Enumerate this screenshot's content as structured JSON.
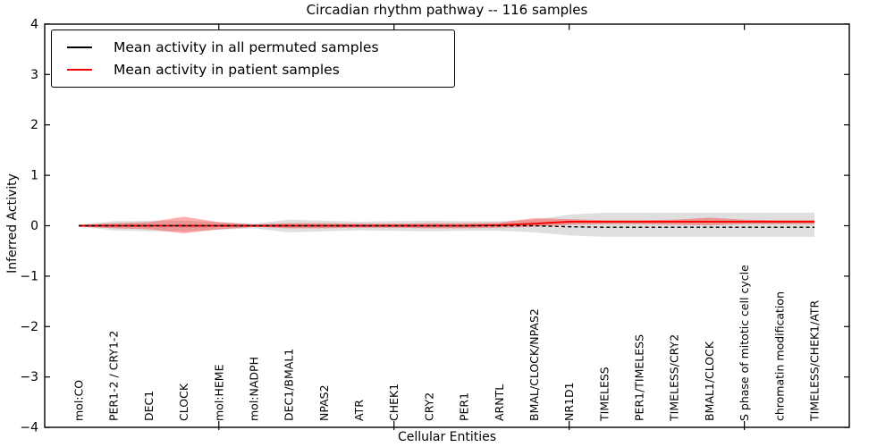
{
  "chart_data": {
    "type": "line",
    "title": "Circadian rhythm pathway -- 116 samples",
    "xlabel": "Cellular Entities",
    "ylabel": "Inferred Activity",
    "ylim": [
      -4,
      4
    ],
    "grid": false,
    "legend_position": "upper left",
    "ytick_values": [
      4,
      3,
      2,
      1,
      0,
      -1,
      -2,
      -3,
      -4
    ],
    "ytick_labels": [
      "4",
      "3",
      "2",
      "1",
      "0",
      "−1",
      "−2",
      "−3",
      "−4"
    ],
    "axis_tick_category_indices": [
      4,
      9,
      14,
      19
    ],
    "categories": [
      "mol:CO",
      "PER1-2 / CRY1-2",
      "DEC1",
      "CLOCK",
      "mol:HEME",
      "mol:NADPH",
      "DEC1/BMAL1",
      "NPAS2",
      "ATR",
      "CHEK1",
      "CRY2",
      "PER1",
      "ARNTL",
      "BMAL/CLOCK/NPAS2",
      "NR1D1",
      "TIMELESS",
      "PER1/TIMELESS",
      "TIMELESS/CRY2",
      "BMAL1/CLOCK",
      "S phase of mitotic cell cycle",
      "chromatin modification",
      "TIMELESS/CHEK1/ATR"
    ],
    "series": [
      {
        "name": "Mean activity in all permuted samples",
        "color": "#000000",
        "style": "dashed",
        "values": [
          0,
          0,
          0,
          0,
          0,
          0,
          0,
          0,
          0,
          0,
          0,
          0,
          0,
          0,
          -0.02,
          -0.03,
          -0.03,
          -0.03,
          -0.03,
          -0.03,
          -0.03,
          -0.03
        ]
      },
      {
        "name": "Mean activity in patient samples",
        "color": "#ff0000",
        "style": "solid",
        "values": [
          0,
          0,
          0,
          0,
          0,
          0,
          0,
          0,
          0,
          0,
          0,
          0,
          0.01,
          0.04,
          0.08,
          0.08,
          0.08,
          0.08,
          0.08,
          0.08,
          0.08,
          0.08
        ]
      }
    ],
    "bands": [
      {
        "name": "permuted-samples-range",
        "color": "#808080",
        "opacity": 0.25,
        "upper": [
          0.02,
          0.09,
          0.1,
          0.1,
          0.07,
          0.04,
          0.12,
          0.1,
          0.08,
          0.09,
          0.1,
          0.09,
          0.09,
          0.12,
          0.22,
          0.26,
          0.26,
          0.26,
          0.26,
          0.26,
          0.26,
          0.26
        ],
        "lower": [
          -0.02,
          -0.09,
          -0.11,
          -0.11,
          -0.08,
          -0.05,
          -0.13,
          -0.11,
          -0.09,
          -0.1,
          -0.11,
          -0.1,
          -0.1,
          -0.13,
          -0.19,
          -0.22,
          -0.22,
          -0.22,
          -0.22,
          -0.22,
          -0.22,
          -0.22
        ]
      },
      {
        "name": "patient-samples-range",
        "color": "#ff0000",
        "opacity": 0.32,
        "upper": [
          0.015,
          0.05,
          0.07,
          0.18,
          0.07,
          0.025,
          0.05,
          0.05,
          0.04,
          0.04,
          0.05,
          0.05,
          0.06,
          0.15,
          0.13,
          0.11,
          0.11,
          0.12,
          0.16,
          0.12,
          0.11,
          0.11
        ],
        "lower": [
          -0.015,
          -0.05,
          -0.07,
          -0.15,
          -0.07,
          -0.025,
          -0.05,
          -0.05,
          -0.04,
          -0.04,
          -0.05,
          -0.05,
          -0.04,
          -0.02,
          0.02,
          0.03,
          0.03,
          0.02,
          0.01,
          0.03,
          0.03,
          0.03
        ]
      }
    ]
  }
}
